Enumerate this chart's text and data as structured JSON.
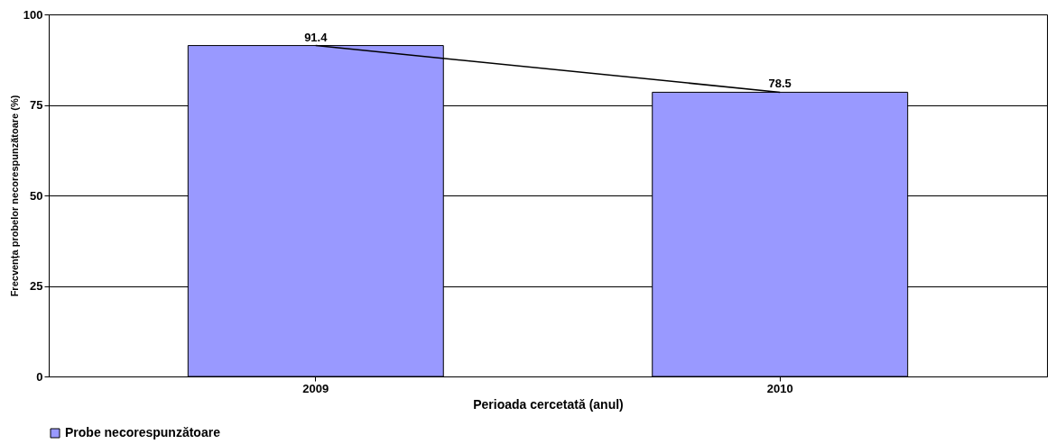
{
  "chart_data": {
    "type": "bar",
    "xlabel": "Perioada cercetată (anul)",
    "ylabel": "Frecvența probelor necorespunzătoare (%)",
    "categories": [
      "2009",
      "2010"
    ],
    "series": [
      {
        "name": "Probe necorespunzătoare",
        "color": "#9999ff",
        "values": [
          91.4,
          78.5
        ],
        "value_labels": [
          "91.4",
          "78.5"
        ]
      },
      {
        "type": "line",
        "color": "#000000",
        "values": [
          91.4,
          78.5
        ]
      }
    ],
    "ylim": [
      0,
      100
    ],
    "yticks": [
      0,
      25,
      50,
      75,
      100
    ],
    "grid": "y",
    "legend": "bottom"
  }
}
